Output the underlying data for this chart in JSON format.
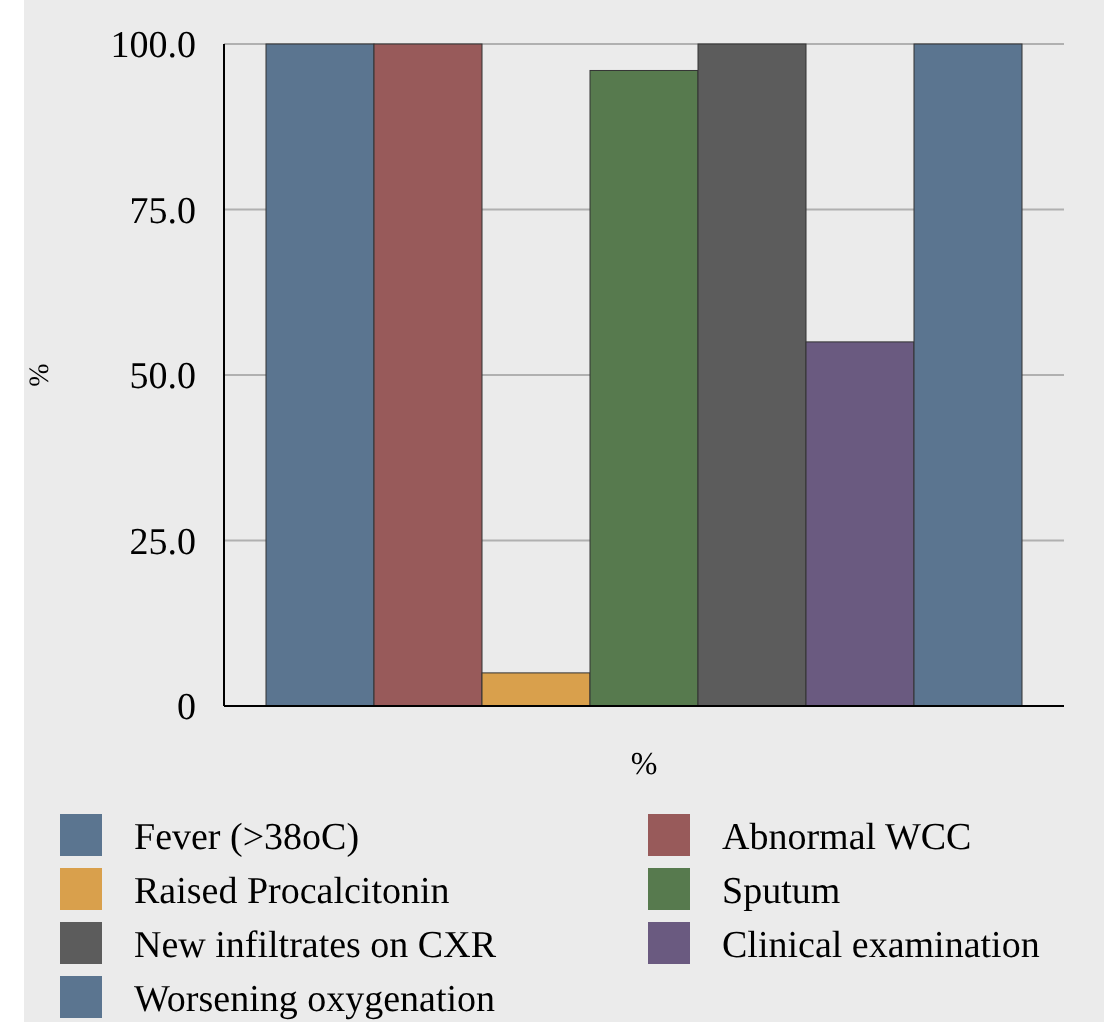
{
  "chart_data": {
    "type": "bar",
    "xlabel": "%",
    "ylabel": "%",
    "categories": [
      null
    ],
    "series": [
      {
        "name": "Fever (>38oC)",
        "color": "#5b7590",
        "values": [
          100
        ]
      },
      {
        "name": "Abnormal WCC",
        "color": "#985a5a",
        "values": [
          100
        ]
      },
      {
        "name": "Raised Procalcitonin",
        "color": "#d9a04c",
        "values": [
          5
        ]
      },
      {
        "name": "Sputum",
        "color": "#577a4e",
        "values": [
          96
        ]
      },
      {
        "name": "New infiltrates on CXR",
        "color": "#5c5c5c",
        "values": [
          100
        ]
      },
      {
        "name": "Clinical examination",
        "color": "#6a5a80",
        "values": [
          55
        ]
      },
      {
        "name": "Worsening oxygenation",
        "color": "#5b7590",
        "values": [
          100
        ]
      }
    ],
    "ylim": [
      0,
      100
    ],
    "yticks": [
      0,
      {
        "value": 25,
        "label": "25.0"
      },
      {
        "value": 50,
        "label": "50.0"
      },
      {
        "value": 75,
        "label": "75.0"
      },
      {
        "value": 100,
        "label": "100.0"
      }
    ],
    "grid": "y",
    "legend": "bottom"
  }
}
